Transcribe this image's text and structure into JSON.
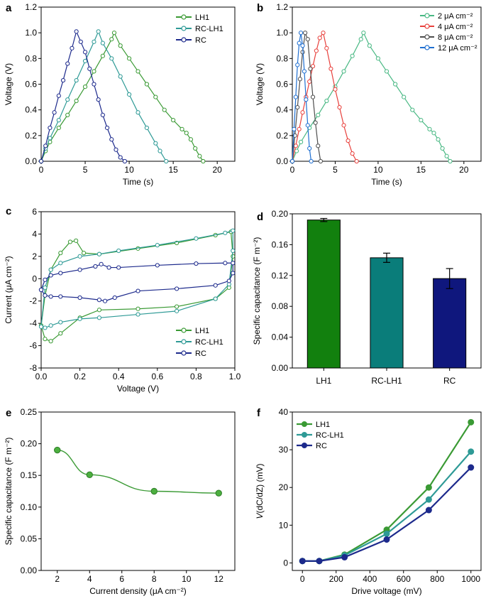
{
  "chart_data": [
    {
      "panel": "a",
      "type": "line",
      "xlabel": "Time (s)",
      "ylabel": "Voltage (V)",
      "xlim": [
        0,
        22
      ],
      "ylim": [
        0,
        1.2
      ],
      "xticks": [
        0,
        5,
        10,
        15,
        20
      ],
      "yticks": [
        0,
        0.2,
        0.4,
        0.6,
        0.8,
        1.0,
        1.2
      ],
      "ytick_labels": [
        "0.0",
        "0.2",
        "0.4",
        "0.6",
        "0.8",
        "1.0",
        "1.2"
      ],
      "legend": "top-right",
      "series": [
        {
          "name": "LH1",
          "color": "#3a9a34",
          "x": [
            0,
            0.5,
            1,
            2,
            3,
            4,
            5,
            6,
            7,
            8,
            8.3,
            9,
            10,
            11,
            12,
            13,
            14,
            15,
            16,
            16.5,
            17,
            17.5,
            18,
            18.4
          ],
          "y": [
            0,
            0.08,
            0.15,
            0.26,
            0.36,
            0.47,
            0.58,
            0.7,
            0.82,
            0.95,
            1.0,
            0.9,
            0.8,
            0.7,
            0.6,
            0.5,
            0.4,
            0.32,
            0.25,
            0.22,
            0.17,
            0.1,
            0.04,
            0
          ]
        },
        {
          "name": "RC-LH1",
          "color": "#2e9a96",
          "x": [
            0,
            0.5,
            1,
            2,
            3,
            4,
            5,
            6,
            6.5,
            7,
            8,
            9,
            10,
            11,
            12,
            13,
            13.5,
            14.2
          ],
          "y": [
            0,
            0.1,
            0.18,
            0.32,
            0.48,
            0.63,
            0.78,
            0.93,
            1.01,
            0.92,
            0.8,
            0.66,
            0.52,
            0.38,
            0.26,
            0.14,
            0.08,
            0
          ]
        },
        {
          "name": "RC",
          "color": "#1d2a8c",
          "x": [
            0,
            0.5,
            1,
            1.5,
            2,
            2.5,
            3,
            3.5,
            4,
            4.5,
            5,
            5.5,
            6,
            6.5,
            7,
            7.5,
            8,
            8.5,
            9,
            9.5
          ],
          "y": [
            0,
            0.12,
            0.26,
            0.38,
            0.51,
            0.63,
            0.76,
            0.88,
            1.01,
            0.93,
            0.85,
            0.72,
            0.6,
            0.48,
            0.36,
            0.26,
            0.17,
            0.09,
            0.03,
            0
          ]
        }
      ]
    },
    {
      "panel": "b",
      "type": "line",
      "xlabel": "Time (s)",
      "ylabel": "Voltage (V)",
      "xlim": [
        0,
        22
      ],
      "ylim": [
        0,
        1.2
      ],
      "xticks": [
        0,
        5,
        10,
        15,
        20
      ],
      "yticks": [
        0,
        0.2,
        0.4,
        0.6,
        0.8,
        1.0,
        1.2
      ],
      "ytick_labels": [
        "0.0",
        "0.2",
        "0.4",
        "0.6",
        "0.8",
        "1.0",
        "1.2"
      ],
      "legend": "top-right",
      "series": [
        {
          "name": "2 μA cm⁻²",
          "color": "#48b883",
          "x": [
            0,
            0.5,
            1,
            2,
            3,
            4,
            5,
            6,
            7,
            8,
            8.3,
            9,
            10,
            11,
            12,
            13,
            14,
            15,
            16,
            16.5,
            17,
            17.5,
            18,
            18.4
          ],
          "y": [
            0,
            0.08,
            0.15,
            0.26,
            0.36,
            0.47,
            0.58,
            0.7,
            0.82,
            0.95,
            1.0,
            0.9,
            0.8,
            0.7,
            0.6,
            0.5,
            0.4,
            0.32,
            0.25,
            0.22,
            0.17,
            0.1,
            0.04,
            0
          ]
        },
        {
          "name": "4 μA cm⁻²",
          "color": "#e8403c",
          "x": [
            0,
            0.4,
            0.8,
            1.2,
            1.6,
            2,
            2.4,
            2.8,
            3.2,
            3.6,
            4,
            4.5,
            5,
            5.5,
            6,
            6.5,
            7,
            7.5
          ],
          "y": [
            0,
            0.12,
            0.25,
            0.38,
            0.5,
            0.62,
            0.74,
            0.86,
            0.96,
            1.0,
            0.88,
            0.72,
            0.56,
            0.42,
            0.28,
            0.16,
            0.06,
            0
          ]
        },
        {
          "name": "8 μA cm⁻²",
          "color": "#4d4d4d",
          "x": [
            0,
            0.3,
            0.6,
            0.9,
            1.2,
            1.5,
            1.8,
            2.1,
            2.4,
            2.7,
            3.0,
            3.3
          ],
          "y": [
            0,
            0.2,
            0.42,
            0.64,
            0.85,
            1.0,
            0.95,
            0.72,
            0.5,
            0.3,
            0.12,
            0
          ]
        },
        {
          "name": "12 μA cm⁻²",
          "color": "#1f6fd1",
          "x": [
            0,
            0.2,
            0.4,
            0.6,
            0.8,
            1.0,
            1.2,
            1.4,
            1.6,
            1.8,
            2.0,
            2.2
          ],
          "y": [
            0,
            0.25,
            0.5,
            0.75,
            0.92,
            1.0,
            0.9,
            0.7,
            0.48,
            0.28,
            0.1,
            0
          ]
        }
      ]
    },
    {
      "panel": "c",
      "type": "line",
      "xlabel": "Voltage (V)",
      "ylabel": "Current (μA cm⁻²)",
      "xlim": [
        0,
        1.0
      ],
      "ylim": [
        -8,
        6
      ],
      "xticks": [
        0,
        0.2,
        0.4,
        0.6,
        0.8,
        1.0
      ],
      "xtick_labels": [
        "0.0",
        "0.2",
        "0.4",
        "0.6",
        "0.8",
        "1.0"
      ],
      "yticks": [
        -8,
        -6,
        -4,
        -2,
        0,
        2,
        4,
        6
      ],
      "legend": "bottom-right",
      "series": [
        {
          "name": "LH1",
          "color": "#3a9a34",
          "x": [
            0,
            0.02,
            0.05,
            0.1,
            0.15,
            0.18,
            0.22,
            0.3,
            0.5,
            0.7,
            0.9,
            0.98,
            0.99,
            0.97,
            0.9,
            0.7,
            0.5,
            0.3,
            0.2,
            0.1,
            0.05,
            0.02,
            0
          ],
          "y": [
            -4.2,
            -1.5,
            0.8,
            2.3,
            3.3,
            3.4,
            2.3,
            2.2,
            2.7,
            3.2,
            3.9,
            4.2,
            2.0,
            -0.8,
            -1.8,
            -2.5,
            -2.7,
            -2.8,
            -3.5,
            -4.9,
            -5.6,
            -5.4,
            -4.2
          ]
        },
        {
          "name": "RC-LH1",
          "color": "#2e9a96",
          "x": [
            0,
            0.02,
            0.05,
            0.1,
            0.2,
            0.3,
            0.4,
            0.6,
            0.8,
            0.95,
            0.99,
            0.99,
            0.97,
            0.9,
            0.7,
            0.5,
            0.3,
            0.2,
            0.1,
            0.05,
            0.02,
            0
          ],
          "y": [
            -4.3,
            -0.8,
            0.8,
            1.4,
            2.0,
            2.2,
            2.5,
            3.0,
            3.6,
            4.1,
            4.3,
            2.5,
            -0.5,
            -1.8,
            -2.9,
            -3.2,
            -3.5,
            -3.6,
            -3.9,
            -4.2,
            -4.4,
            -4.3
          ]
        },
        {
          "name": "RC",
          "color": "#1d2a8c",
          "x": [
            0,
            0.02,
            0.05,
            0.1,
            0.2,
            0.28,
            0.31,
            0.35,
            0.4,
            0.6,
            0.8,
            0.95,
            0.99,
            0.99,
            0.97,
            0.9,
            0.7,
            0.5,
            0.38,
            0.33,
            0.3,
            0.2,
            0.1,
            0.05,
            0.02,
            0
          ],
          "y": [
            -1.0,
            -0.1,
            0.3,
            0.5,
            0.8,
            1.1,
            1.3,
            1.0,
            1.0,
            1.2,
            1.35,
            1.4,
            1.4,
            0.5,
            -0.2,
            -0.6,
            -0.9,
            -1.1,
            -1.7,
            -2.0,
            -1.9,
            -1.7,
            -1.6,
            -1.6,
            -1.5,
            -1.0
          ]
        }
      ]
    },
    {
      "panel": "d",
      "type": "bar",
      "ylabel": "Specific capacitance (F m⁻²)",
      "ylim": [
        0,
        0.2
      ],
      "yticks": [
        0,
        0.04,
        0.08,
        0.12,
        0.16,
        0.2
      ],
      "ytick_labels": [
        "0.00",
        "0.04",
        "0.08",
        "0.12",
        "0.16",
        "0.20"
      ],
      "categories": [
        "LH1",
        "RC-LH1",
        "RC"
      ],
      "values": [
        0.192,
        0.143,
        0.116
      ],
      "errors": [
        0.002,
        0.006,
        0.013
      ],
      "colors": [
        "#12800e",
        "#0a7d7a",
        "#0f177d"
      ]
    },
    {
      "panel": "e",
      "type": "line",
      "xlabel": "Current density (μA cm⁻²)",
      "ylabel": "Specific capacitance (F m⁻²)",
      "xlim": [
        1,
        13
      ],
      "ylim": [
        0,
        0.25
      ],
      "xticks": [
        2,
        4,
        6,
        8,
        10,
        12
      ],
      "yticks": [
        0,
        0.05,
        0.1,
        0.15,
        0.2,
        0.25
      ],
      "ytick_labels": [
        "0.00",
        "0.05",
        "0.10",
        "0.15",
        "0.20",
        "0.25"
      ],
      "series": [
        {
          "name": "LH1",
          "color": "#3a9a34",
          "x": [
            2,
            4,
            8,
            12
          ],
          "y": [
            0.19,
            0.151,
            0.125,
            0.122
          ]
        }
      ]
    },
    {
      "panel": "f",
      "type": "line",
      "xlabel": "Drive voltage (mV)",
      "ylabel": "V(dC/dZ) (mV)",
      "ylabel_italic": "V",
      "ylabel_rest": "(dC/dZ) (mV)",
      "xlim": [
        -60,
        1060
      ],
      "ylim": [
        -2,
        40
      ],
      "xticks": [
        0,
        200,
        400,
        600,
        800,
        1000
      ],
      "yticks": [
        0,
        10,
        20,
        30,
        40
      ],
      "legend": "top-left",
      "x": [
        0,
        100,
        250,
        500,
        750,
        1000
      ],
      "series": [
        {
          "name": "LH1",
          "color": "#3a9a34",
          "values": [
            0.5,
            0.5,
            2.2,
            8.8,
            20.0,
            37.3
          ]
        },
        {
          "name": "RC-LH1",
          "color": "#2e9a96",
          "values": [
            0.5,
            0.5,
            2.0,
            7.7,
            16.8,
            29.5
          ]
        },
        {
          "name": "RC",
          "color": "#1d2a8c",
          "values": [
            0.5,
            0.5,
            1.5,
            6.2,
            14.0,
            25.3
          ]
        }
      ]
    }
  ]
}
